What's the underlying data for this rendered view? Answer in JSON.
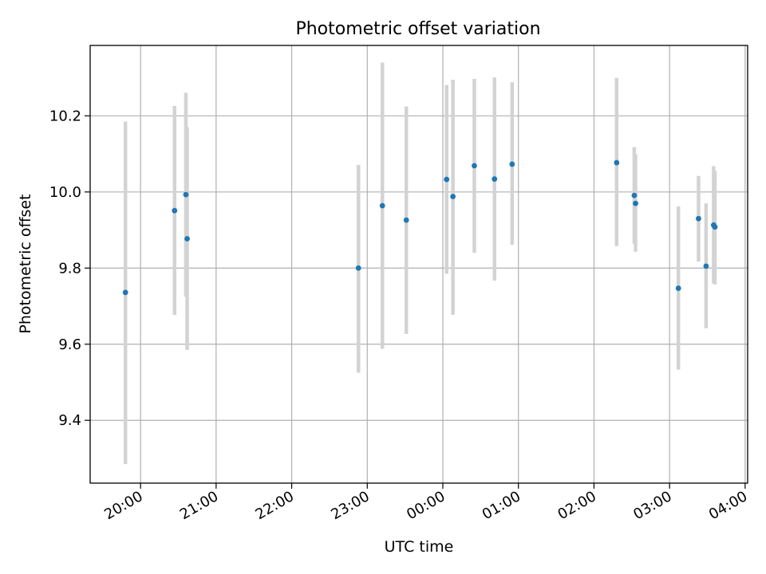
{
  "chart_data": {
    "type": "scatter",
    "title": "Photometric offset variation",
    "xlabel": "UTC time",
    "ylabel": "Photometric offset",
    "x_axis_type": "time",
    "xlim": [
      "19:20",
      "04:02"
    ],
    "ylim": [
      9.235,
      10.385
    ],
    "x_ticks": [
      "20:00",
      "21:00",
      "22:00",
      "23:00",
      "00:00",
      "01:00",
      "02:00",
      "03:00",
      "04:00"
    ],
    "y_ticks": [
      9.4,
      9.6,
      9.8,
      10.0,
      10.2
    ],
    "y_tick_labels": [
      "9.4",
      "9.6",
      "9.8",
      "10.0",
      "10.2"
    ],
    "grid": true,
    "marker_color": "#1f77b4",
    "errorbar_color": "#d3d3d3",
    "series": [
      {
        "x": [
          "19:48",
          "20:27",
          "20:36",
          "20:37",
          "22:53",
          "23:12",
          "23:31",
          "00:03",
          "00:08",
          "00:25",
          "00:41",
          "00:55",
          "02:18",
          "02:32",
          "02:33",
          "03:07",
          "03:23",
          "03:29",
          "03:35",
          "03:36"
        ],
        "y": [
          9.736,
          9.951,
          9.993,
          9.877,
          9.8,
          9.964,
          9.926,
          10.033,
          9.988,
          10.069,
          10.034,
          10.073,
          10.077,
          9.991,
          9.97,
          9.747,
          9.93,
          9.805,
          9.913,
          9.908
        ],
        "yerr_low": [
          9.285,
          9.677,
          9.725,
          9.585,
          9.525,
          9.588,
          9.627,
          9.785,
          9.677,
          9.84,
          9.767,
          9.861,
          9.858,
          9.864,
          9.843,
          9.533,
          9.817,
          9.642,
          9.76,
          9.757
        ],
        "yerr_high": [
          10.185,
          10.226,
          10.261,
          10.17,
          10.071,
          10.34,
          10.225,
          10.281,
          10.295,
          10.297,
          10.301,
          10.288,
          10.3,
          10.118,
          10.099,
          9.962,
          10.042,
          9.97,
          10.068,
          10.055
        ]
      }
    ]
  }
}
